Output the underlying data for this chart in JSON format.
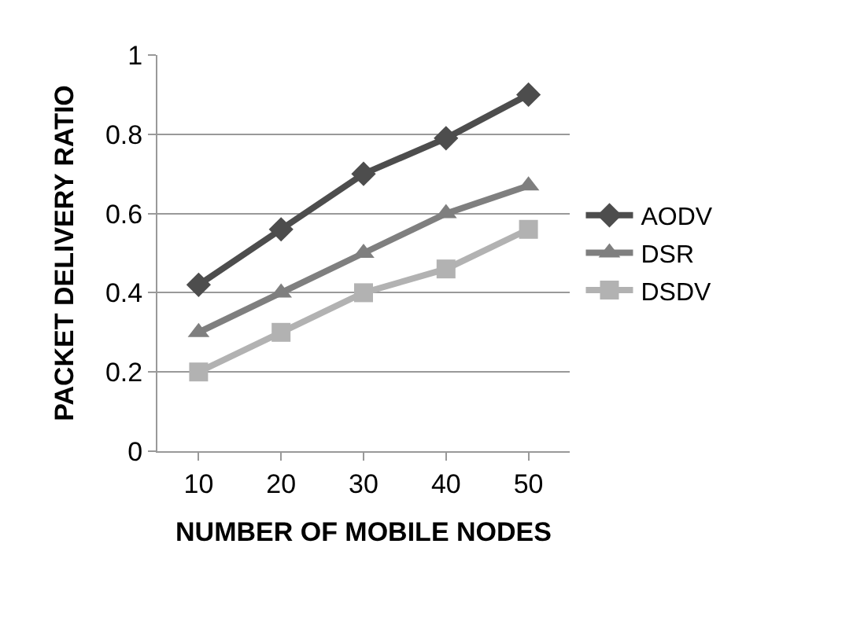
{
  "chart_data": {
    "type": "line",
    "xlabel": "NUMBER OF MOBILE NODES",
    "ylabel": "PACKET DELIVERY RATIO",
    "categories": [
      "10",
      "20",
      "30",
      "40",
      "50"
    ],
    "series": [
      {
        "name": "AODV",
        "color": "#4d4d4d",
        "marker": "diamond",
        "values": [
          0.42,
          0.56,
          0.7,
          0.79,
          0.9
        ]
      },
      {
        "name": "DSR",
        "color": "#7f7f7f",
        "marker": "triangle",
        "values": [
          0.3,
          0.4,
          0.5,
          0.6,
          0.67
        ]
      },
      {
        "name": "DSDV",
        "color": "#b2b2b2",
        "marker": "square",
        "values": [
          0.2,
          0.3,
          0.4,
          0.46,
          0.56
        ]
      }
    ],
    "ylim": [
      0,
      1
    ],
    "yticks": [
      0,
      0.2,
      0.4,
      0.6,
      0.8,
      1
    ],
    "grid": "y",
    "legend": "right",
    "line_style": "solid"
  }
}
